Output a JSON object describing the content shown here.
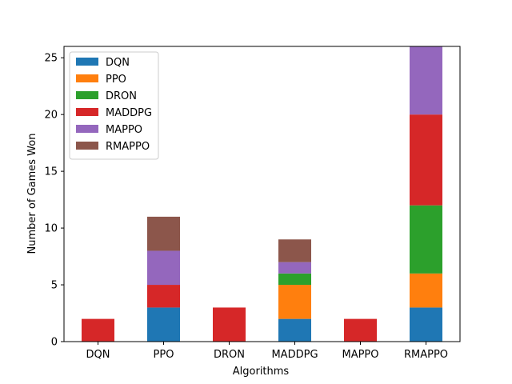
{
  "chart_data": {
    "type": "bar",
    "stacked": true,
    "title": "",
    "xlabel": "Algorithms",
    "ylabel": "Number of Games Won",
    "categories": [
      "DQN",
      "PPO",
      "DRON",
      "MADDPG",
      "MAPPO",
      "RMAPPO"
    ],
    "ylim": [
      0,
      26
    ],
    "yticks": [
      0,
      5,
      10,
      15,
      20,
      25
    ],
    "grid": false,
    "legend_position": "top-left",
    "series": [
      {
        "name": "DQN",
        "color": "#1f77b4",
        "values": [
          0,
          3,
          0,
          2,
          0,
          3
        ]
      },
      {
        "name": "PPO",
        "color": "#ff7f0e",
        "values": [
          0,
          0,
          0,
          3,
          0,
          3
        ]
      },
      {
        "name": "DRON",
        "color": "#2ca02c",
        "values": [
          0,
          0,
          0,
          1,
          0,
          6
        ]
      },
      {
        "name": "MADDPG",
        "color": "#d62728",
        "values": [
          2,
          2,
          3,
          0,
          2,
          8
        ]
      },
      {
        "name": "MAPPO",
        "color": "#9467bd",
        "values": [
          0,
          3,
          0,
          1,
          0,
          6
        ]
      },
      {
        "name": "RMAPPO",
        "color": "#8c564b",
        "values": [
          0,
          3,
          0,
          2,
          0,
          0
        ]
      }
    ]
  }
}
